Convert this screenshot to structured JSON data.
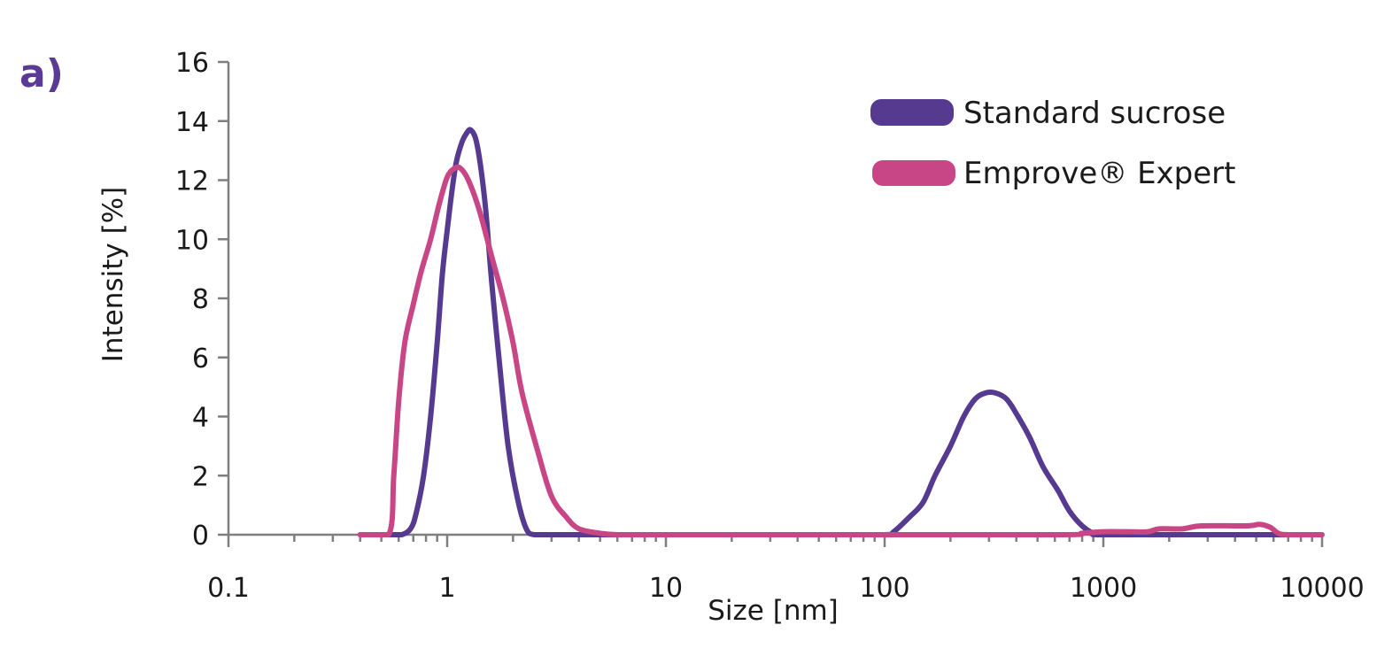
{
  "panel_label": "a)",
  "colors": {
    "standard_sucrose": "#553a8f",
    "emprove_expert": "#c94686",
    "axis": "#7f7f7f"
  },
  "chart_data": {
    "type": "line",
    "title": "",
    "xlabel": "Size [nm]",
    "ylabel": "Intensity  [%]",
    "x_scale": "log",
    "xlim": [
      0.1,
      10000
    ],
    "ylim": [
      0,
      16
    ],
    "x_ticks": [
      "0.1",
      "1",
      "10",
      "100",
      "1000",
      "10000"
    ],
    "y_ticks": [
      "0",
      "2",
      "4",
      "6",
      "8",
      "10",
      "12",
      "14",
      "16"
    ],
    "grid": false,
    "legend_position": "top-right",
    "series": [
      {
        "name": "Standard  sucrose",
        "color_key": "standard_sucrose",
        "points": [
          [
            0.4,
            0.0
          ],
          [
            0.55,
            0.0
          ],
          [
            0.62,
            0.0
          ],
          [
            0.68,
            0.2
          ],
          [
            0.72,
            0.7
          ],
          [
            0.78,
            2.0
          ],
          [
            0.84,
            4.0
          ],
          [
            0.9,
            6.5
          ],
          [
            0.95,
            8.8
          ],
          [
            1.0,
            10.3
          ],
          [
            1.05,
            11.6
          ],
          [
            1.1,
            12.6
          ],
          [
            1.17,
            13.3
          ],
          [
            1.23,
            13.6
          ],
          [
            1.28,
            13.7
          ],
          [
            1.35,
            13.4
          ],
          [
            1.42,
            12.5
          ],
          [
            1.5,
            11.0
          ],
          [
            1.6,
            8.5
          ],
          [
            1.75,
            5.5
          ],
          [
            1.9,
            3.0
          ],
          [
            2.1,
            1.2
          ],
          [
            2.3,
            0.2
          ],
          [
            2.5,
            0.0
          ],
          [
            3.0,
            0.0
          ],
          [
            10,
            0.0
          ],
          [
            50,
            0.0
          ],
          [
            100,
            0.0
          ],
          [
            110,
            0.1
          ],
          [
            130,
            0.6
          ],
          [
            150,
            1.1
          ],
          [
            170,
            2.0
          ],
          [
            200,
            3.0
          ],
          [
            230,
            4.0
          ],
          [
            260,
            4.6
          ],
          [
            290,
            4.8
          ],
          [
            320,
            4.8
          ],
          [
            360,
            4.6
          ],
          [
            400,
            4.1
          ],
          [
            460,
            3.3
          ],
          [
            530,
            2.3
          ],
          [
            620,
            1.5
          ],
          [
            700,
            0.8
          ],
          [
            800,
            0.3
          ],
          [
            900,
            0.05
          ],
          [
            1000,
            0.0
          ],
          [
            3000,
            0.0
          ],
          [
            9000,
            0.0
          ]
        ]
      },
      {
        "name": "Emprove® Expert",
        "color_key": "emprove_expert",
        "points": [
          [
            0.4,
            0.0
          ],
          [
            0.54,
            0.0
          ],
          [
            0.57,
            2.0
          ],
          [
            0.6,
            4.5
          ],
          [
            0.64,
            6.5
          ],
          [
            0.7,
            7.8
          ],
          [
            0.76,
            8.9
          ],
          [
            0.84,
            10.0
          ],
          [
            0.92,
            11.2
          ],
          [
            1.0,
            12.1
          ],
          [
            1.08,
            12.4
          ],
          [
            1.15,
            12.4
          ],
          [
            1.25,
            12.0
          ],
          [
            1.4,
            11.0
          ],
          [
            1.6,
            9.4
          ],
          [
            1.8,
            8.0
          ],
          [
            2.0,
            6.5
          ],
          [
            2.2,
            4.8
          ],
          [
            2.6,
            2.8
          ],
          [
            3.0,
            1.3
          ],
          [
            3.5,
            0.6
          ],
          [
            4.0,
            0.2
          ],
          [
            5.0,
            0.05
          ],
          [
            6.0,
            0.0
          ],
          [
            10,
            0.0
          ],
          [
            100,
            0.0
          ],
          [
            650,
            0.0
          ],
          [
            800,
            0.05
          ],
          [
            1000,
            0.1
          ],
          [
            1300,
            0.1
          ],
          [
            1600,
            0.1
          ],
          [
            1800,
            0.2
          ],
          [
            2300,
            0.2
          ],
          [
            2800,
            0.3
          ],
          [
            4500,
            0.3
          ],
          [
            5200,
            0.35
          ],
          [
            5800,
            0.25
          ],
          [
            6300,
            0.05
          ],
          [
            7000,
            0.0
          ],
          [
            10000,
            0.0
          ]
        ]
      }
    ]
  }
}
